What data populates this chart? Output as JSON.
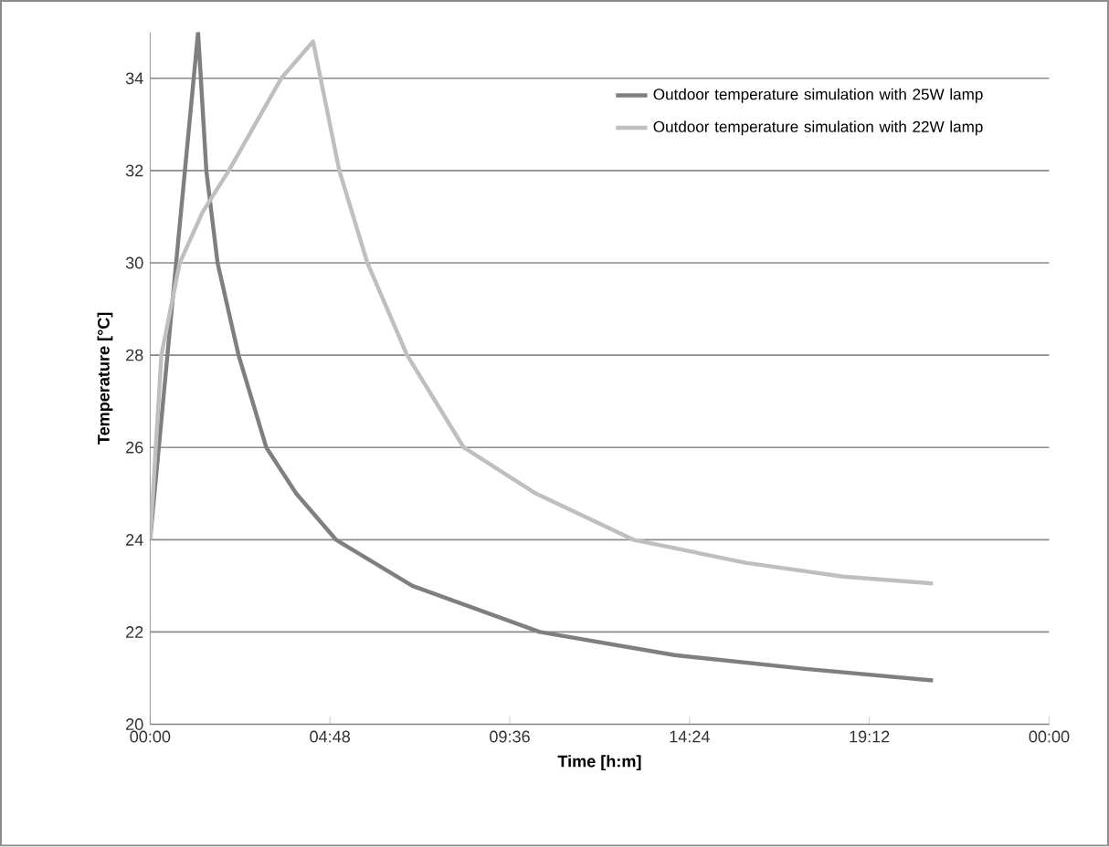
{
  "chart_data": {
    "type": "line",
    "xlabel": "Time [h:m]",
    "ylabel": "Temperature [°C]",
    "xlim": [
      0,
      24
    ],
    "ylim": [
      20,
      35
    ],
    "xticks": [
      {
        "value": 0,
        "label": "00:00"
      },
      {
        "value": 4.8,
        "label": "04:48"
      },
      {
        "value": 9.6,
        "label": "09:36"
      },
      {
        "value": 14.4,
        "label": "14:24"
      },
      {
        "value": 19.2,
        "label": "19:12"
      },
      {
        "value": 24,
        "label": "00:00"
      }
    ],
    "yticks": [
      20,
      22,
      24,
      26,
      28,
      30,
      32,
      34
    ],
    "grid": "y",
    "legend": "top right",
    "marker": "none",
    "line_style": "solid",
    "series": [
      {
        "name": "Outdoor temperature simulation with 25W lamp",
        "color": "#7f7f7f",
        "x": [
          0,
          0.6,
          1.28,
          1.5,
          1.8,
          2.36,
          3.1,
          3.9,
          4.96,
          7.0,
          10.4,
          14.0,
          17.5,
          20.9
        ],
        "values": [
          24,
          29.2,
          35,
          32,
          30,
          28,
          26,
          25,
          24,
          23,
          22,
          21.5,
          21.2,
          20.95
        ]
      },
      {
        "name": "Outdoor temperature simulation with 22W lamp",
        "color": "#bfbfbf",
        "x": [
          0,
          0.3,
          0.79,
          1.4,
          2.1,
          2.8,
          3.5,
          4.35,
          5.05,
          5.8,
          6.86,
          8.37,
          10.3,
          12.9,
          15.9,
          18.5,
          20.9
        ],
        "values": [
          24,
          28,
          30,
          31.1,
          32,
          33,
          34,
          34.8,
          32,
          30,
          28,
          26,
          25,
          24,
          23.5,
          23.2,
          23.05
        ]
      }
    ]
  }
}
